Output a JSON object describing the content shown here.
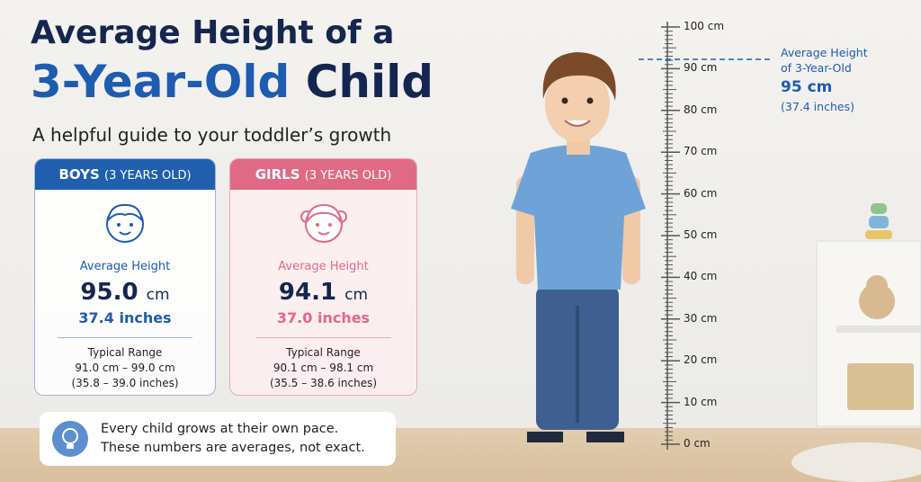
{
  "header": {
    "title_line1": "Average Height of a",
    "title_line2_highlight": "3-Year-Old",
    "title_line2_rest": "Child",
    "subtitle": "A helpful guide to your toddler’s growth"
  },
  "cards": [
    {
      "heading": "BOYS",
      "heading_note": "(3 YEARS OLD)",
      "label": "Average Height",
      "value": "95.0",
      "unit": "cm",
      "inches": "37.4 inches",
      "range_label": "Typical Range",
      "range_cm": "91.0 cm – 99.0 cm",
      "range_in": "(35.8 – 39.0 inches)"
    },
    {
      "heading": "GIRLS",
      "heading_note": "(3 YEARS OLD)",
      "label": "Average Height",
      "value": "94.1",
      "unit": "cm",
      "inches": "37.0 inches",
      "range_label": "Typical Range",
      "range_cm": "90.1 cm – 98.1 cm",
      "range_in": "(35.5 – 38.6 inches)"
    }
  ],
  "note": {
    "line1": "Every child grows at their own pace.",
    "line2": "These numbers are averages, not exact."
  },
  "ruler": {
    "labels": [
      "100 cm",
      "90 cm",
      "80 cm",
      "70 cm",
      "60 cm",
      "50 cm",
      "40 cm",
      "30 cm",
      "20 cm",
      "10 cm",
      "0 cm"
    ]
  },
  "marker": {
    "line1": "Average Height",
    "line2": "of 3-Year-Old",
    "value": "95 cm",
    "inches": "(37.4 inches)"
  }
}
